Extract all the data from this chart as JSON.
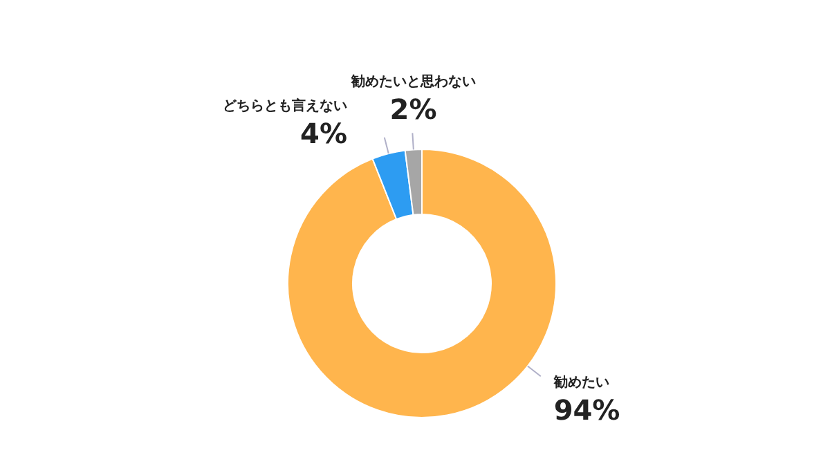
{
  "chart_data": {
    "type": "donut",
    "categories": [
      "勧めたい",
      "どちらとも言えない",
      "勧めたいと思わない"
    ],
    "values": [
      94,
      4,
      2
    ],
    "colors": [
      "#ffb54d",
      "#2d9cf2",
      "#a6a6a6"
    ],
    "value_labels": [
      "94%",
      "4%",
      "2%"
    ]
  }
}
